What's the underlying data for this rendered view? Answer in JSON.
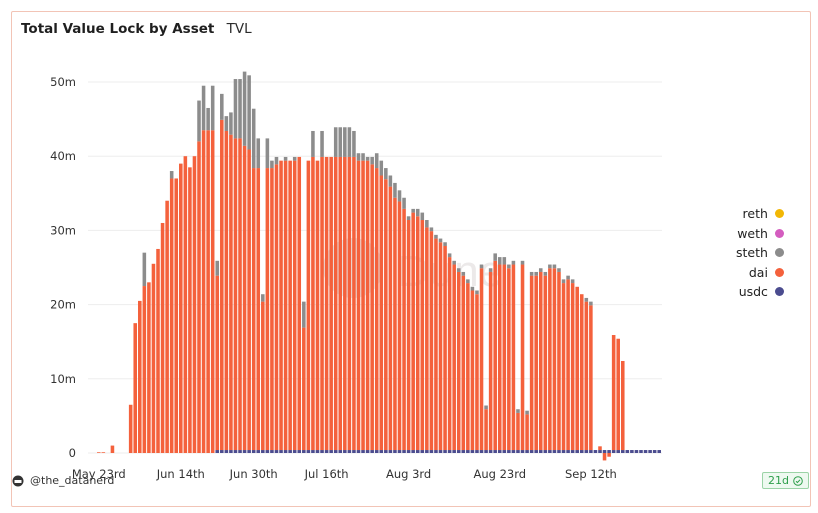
{
  "header": {
    "title": "Total Value Lock by Asset",
    "subtitle": "TVL"
  },
  "footer": {
    "author": "@the_datanerd",
    "badge": "21d"
  },
  "legend": [
    {
      "name": "reth",
      "color": "#f2b705"
    },
    {
      "name": "weth",
      "color": "#d45dbf"
    },
    {
      "name": "steth",
      "color": "#8c8c8c"
    },
    {
      "name": "dai",
      "color": "#f4613c"
    },
    {
      "name": "usdc",
      "color": "#4b4c8f"
    }
  ],
  "watermark": "Dune",
  "chart_data": {
    "type": "bar",
    "stacked": true,
    "ylim": [
      0,
      55
    ],
    "y_ticks": [
      0,
      10,
      20,
      30,
      40,
      50
    ],
    "y_tick_labels": [
      "0",
      "10m",
      "20m",
      "30m",
      "40m",
      "50m"
    ],
    "x_tick_labels": [
      {
        "label": "May 23rd",
        "index": 0
      },
      {
        "label": "Jun 14th",
        "index": 18
      },
      {
        "label": "Jun 30th",
        "index": 34
      },
      {
        "label": "Jul 16th",
        "index": 50
      },
      {
        "label": "Aug 3rd",
        "index": 68
      },
      {
        "label": "Aug 23rd",
        "index": 88
      },
      {
        "label": "Sep 12th",
        "index": 108
      }
    ],
    "series": [
      {
        "name": "usdc",
        "color": "#4b4c8f",
        "values": [
          0,
          0,
          0,
          0,
          0,
          0,
          0,
          0,
          0,
          0,
          0,
          0,
          0,
          0,
          0,
          0,
          0,
          0,
          0,
          0,
          0,
          0,
          0,
          0,
          0,
          0,
          0.4,
          0.4,
          0.4,
          0.4,
          0.4,
          0.4,
          0.4,
          0.4,
          0.4,
          0.4,
          0.4,
          0.4,
          0.4,
          0.4,
          0.4,
          0.4,
          0.4,
          0.4,
          0.4,
          0.4,
          0.4,
          0.4,
          0.4,
          0.4,
          0.4,
          0.4,
          0.4,
          0.4,
          0.4,
          0.4,
          0.4,
          0.4,
          0.4,
          0.4,
          0.4,
          0.4,
          0.4,
          0.4,
          0.4,
          0.4,
          0.4,
          0.4,
          0.4,
          0.4,
          0.4,
          0.4,
          0.4,
          0.4,
          0.4,
          0.4,
          0.4,
          0.4,
          0.4,
          0.4,
          0.4,
          0.4,
          0.4,
          0.4,
          0.4,
          0.4,
          0.4,
          0.4,
          0.4,
          0.4,
          0.4,
          0.4,
          0.4,
          0.4,
          0.4,
          0.4,
          0.4,
          0.4,
          0.4,
          0.4,
          0.4,
          0.4,
          0.4,
          0.4,
          0.4,
          0.4,
          0.4,
          0.4,
          0.4,
          0.4,
          0.4,
          0.4,
          0.4,
          0.4,
          0.4,
          0.4,
          0.4,
          0.4,
          0.4,
          0.4,
          0.4,
          0.4,
          0.4,
          0.4
        ]
      },
      {
        "name": "dai",
        "color": "#f4613c",
        "values": [
          0.1,
          0.1,
          0,
          1,
          0,
          0,
          0,
          6.5,
          17.5,
          20.5,
          22.5,
          23,
          25.5,
          27.5,
          31,
          34,
          37,
          37,
          39,
          40,
          38.5,
          40,
          42,
          43.5,
          43.5,
          43.5,
          23.5,
          44.5,
          43,
          42.5,
          42,
          42,
          41,
          40.5,
          38,
          38,
          20,
          38,
          38,
          38.5,
          39,
          39,
          39,
          39,
          39.5,
          16.5,
          39,
          39.5,
          39,
          39.5,
          39.5,
          39.5,
          39.5,
          39.5,
          39.5,
          39.5,
          39.5,
          39,
          39,
          39,
          38.5,
          38,
          37,
          36.5,
          35.5,
          34,
          33.5,
          32.5,
          31,
          32,
          31.5,
          31,
          30,
          29.5,
          28.5,
          28,
          27.5,
          26,
          25,
          24,
          23.5,
          22.5,
          21.5,
          21,
          24.5,
          5.5,
          24,
          25.5,
          25,
          25,
          24.5,
          25,
          5,
          25,
          4.8,
          23.5,
          23.5,
          24,
          23.5,
          24.5,
          24.5,
          24,
          22.5,
          23,
          22.5,
          22,
          21,
          20,
          19.5,
          0,
          0.5,
          -1,
          -0.5,
          15.5,
          15,
          12
        ]
      },
      {
        "name": "steth",
        "color": "#8c8c8c",
        "values": [
          0,
          0,
          0,
          0,
          0,
          0,
          0,
          0,
          0,
          0,
          4.5,
          0,
          0,
          0,
          0,
          0,
          1,
          0,
          0,
          0,
          0,
          0,
          5.5,
          6,
          3,
          6,
          2,
          3.5,
          2,
          3,
          8,
          8,
          10,
          10,
          8,
          4,
          1,
          4,
          1,
          1,
          0,
          0.5,
          0,
          0.5,
          0,
          3.5,
          0,
          3.5,
          0,
          3.5,
          0,
          0,
          4,
          4,
          4,
          4,
          3.5,
          1,
          1,
          0.5,
          1,
          2,
          2,
          1.5,
          1.5,
          2,
          1.5,
          1.5,
          0.5,
          0.5,
          1,
          1,
          1,
          0.5,
          0.5,
          0.5,
          0.5,
          0.5,
          0.5,
          0.5,
          0.5,
          0.5,
          0.5,
          0.5,
          0.5,
          0.5,
          0.5,
          1,
          1,
          1,
          0.5,
          0.5,
          0.5,
          0.5,
          0.5,
          0.5,
          0.5,
          0.5,
          0.5,
          0.5,
          0.5,
          0.5,
          0.5,
          0.5,
          0.5,
          0,
          0,
          0.5,
          0.5,
          0,
          0,
          0
        ]
      }
    ]
  }
}
